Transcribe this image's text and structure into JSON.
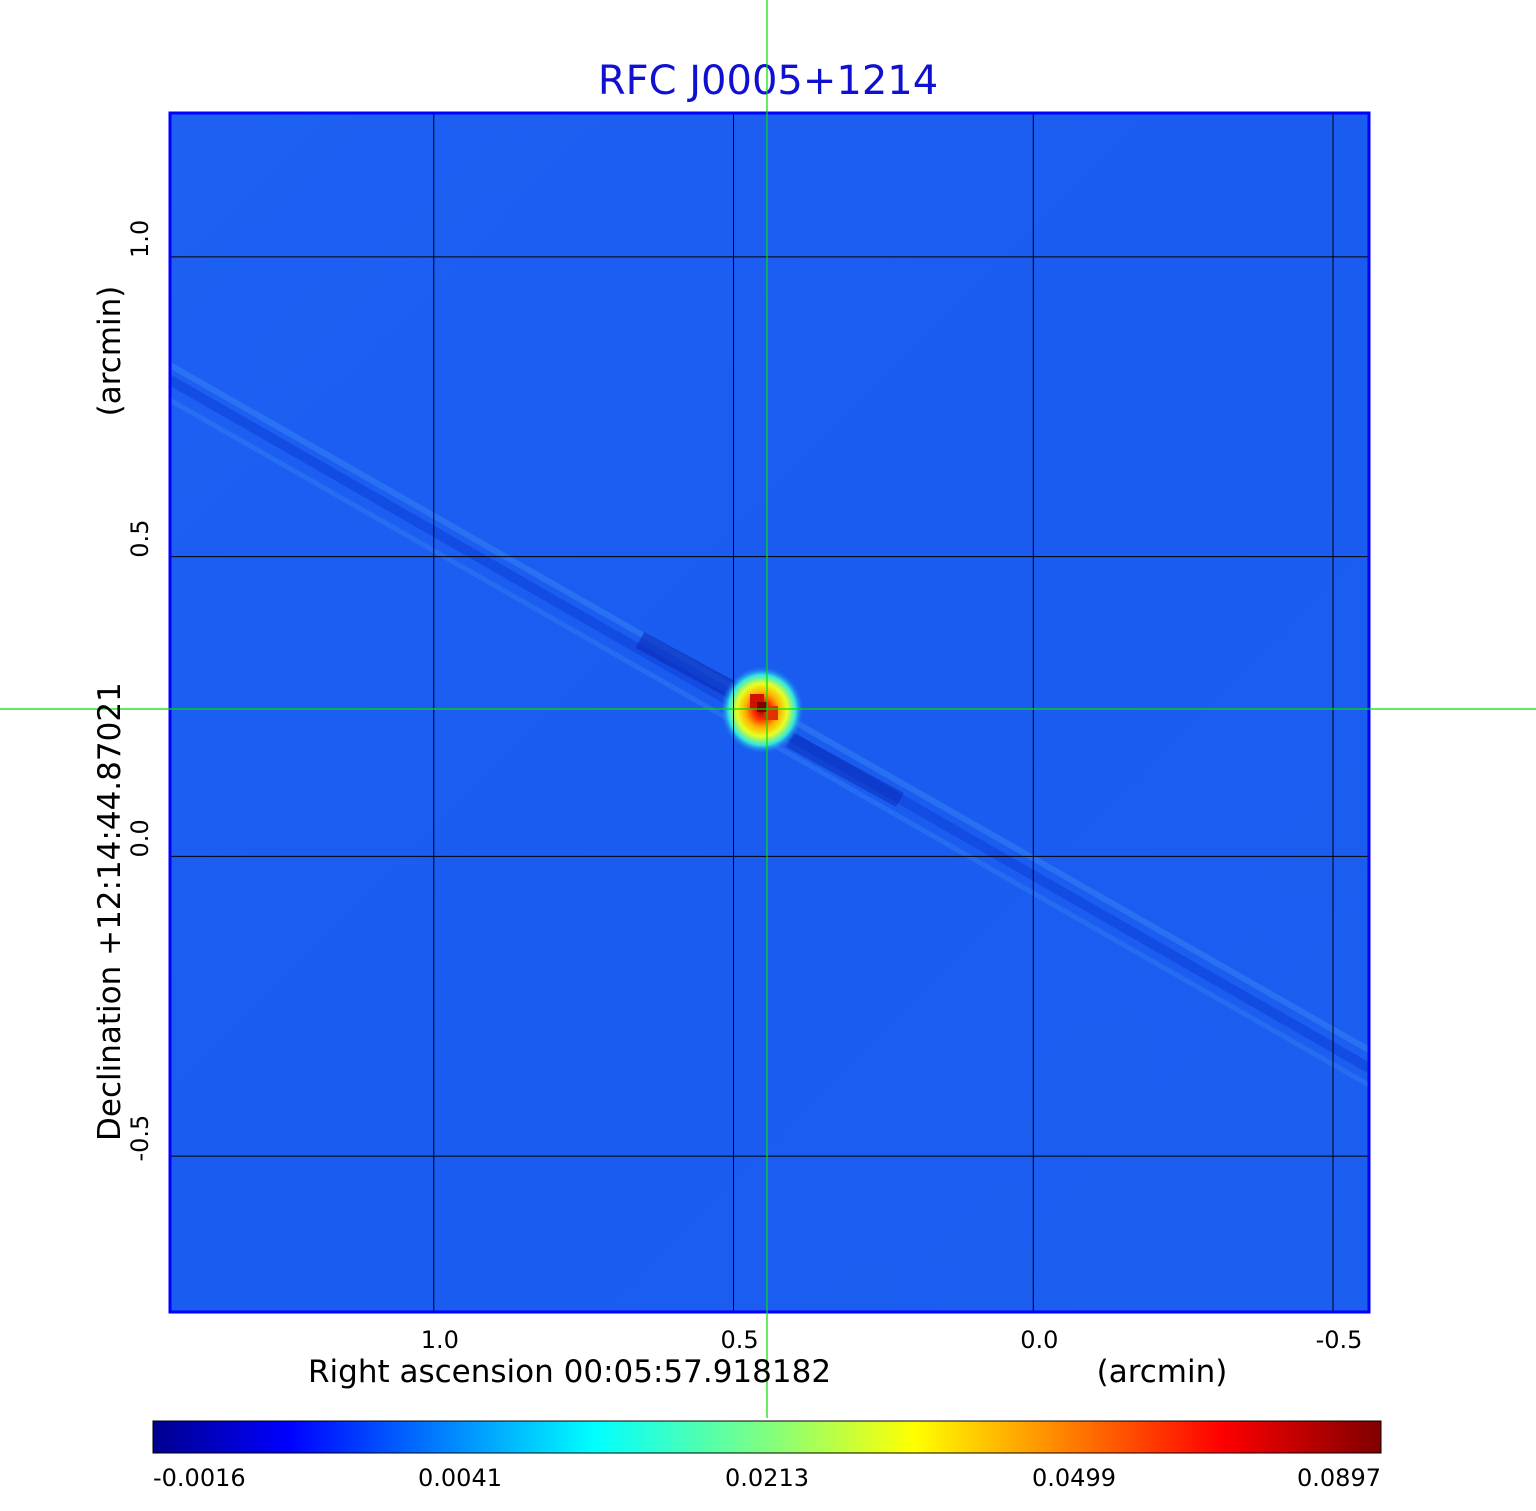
{
  "chart_data": {
    "type": "heatmap",
    "title": "RFC J0005+1214",
    "xlabel": "Right ascension  00:05:57.918182",
    "xunit": "(arcmin)",
    "ylabel": "Declination  +12:14:44.87021",
    "yunit": "(arcmin)",
    "xlim": [
      1.44,
      -0.56
    ],
    "ylim": [
      -0.76,
      1.24
    ],
    "x_ticks": [
      {
        "value": 1.0,
        "label": "1.0"
      },
      {
        "value": 0.5,
        "label": "0.5"
      },
      {
        "value": 0.0,
        "label": "0.0"
      },
      {
        "value": -0.5,
        "label": "-0.5"
      }
    ],
    "y_ticks": [
      {
        "value": 1.0,
        "label": "1.0"
      },
      {
        "value": 0.5,
        "label": "0.5"
      },
      {
        "value": 0.0,
        "label": "0.0"
      },
      {
        "value": -0.5,
        "label": "-0.5"
      }
    ],
    "grid": true,
    "crosshair": {
      "x": 0.446,
      "y": 0.25
    },
    "source_peak": {
      "x": 0.446,
      "y": 0.25,
      "value": 0.0897
    },
    "colormap": "jet",
    "colorbar": {
      "orientation": "horizontal",
      "position": "bottom",
      "ticks": [
        "-0.0016",
        "0.0041",
        "0.0213",
        "0.0499",
        "0.0897"
      ]
    },
    "colors": {
      "title": "#1010d0",
      "background_field": "#1e5ef0",
      "crosshair": "#00e000",
      "grid": "#000000"
    }
  }
}
